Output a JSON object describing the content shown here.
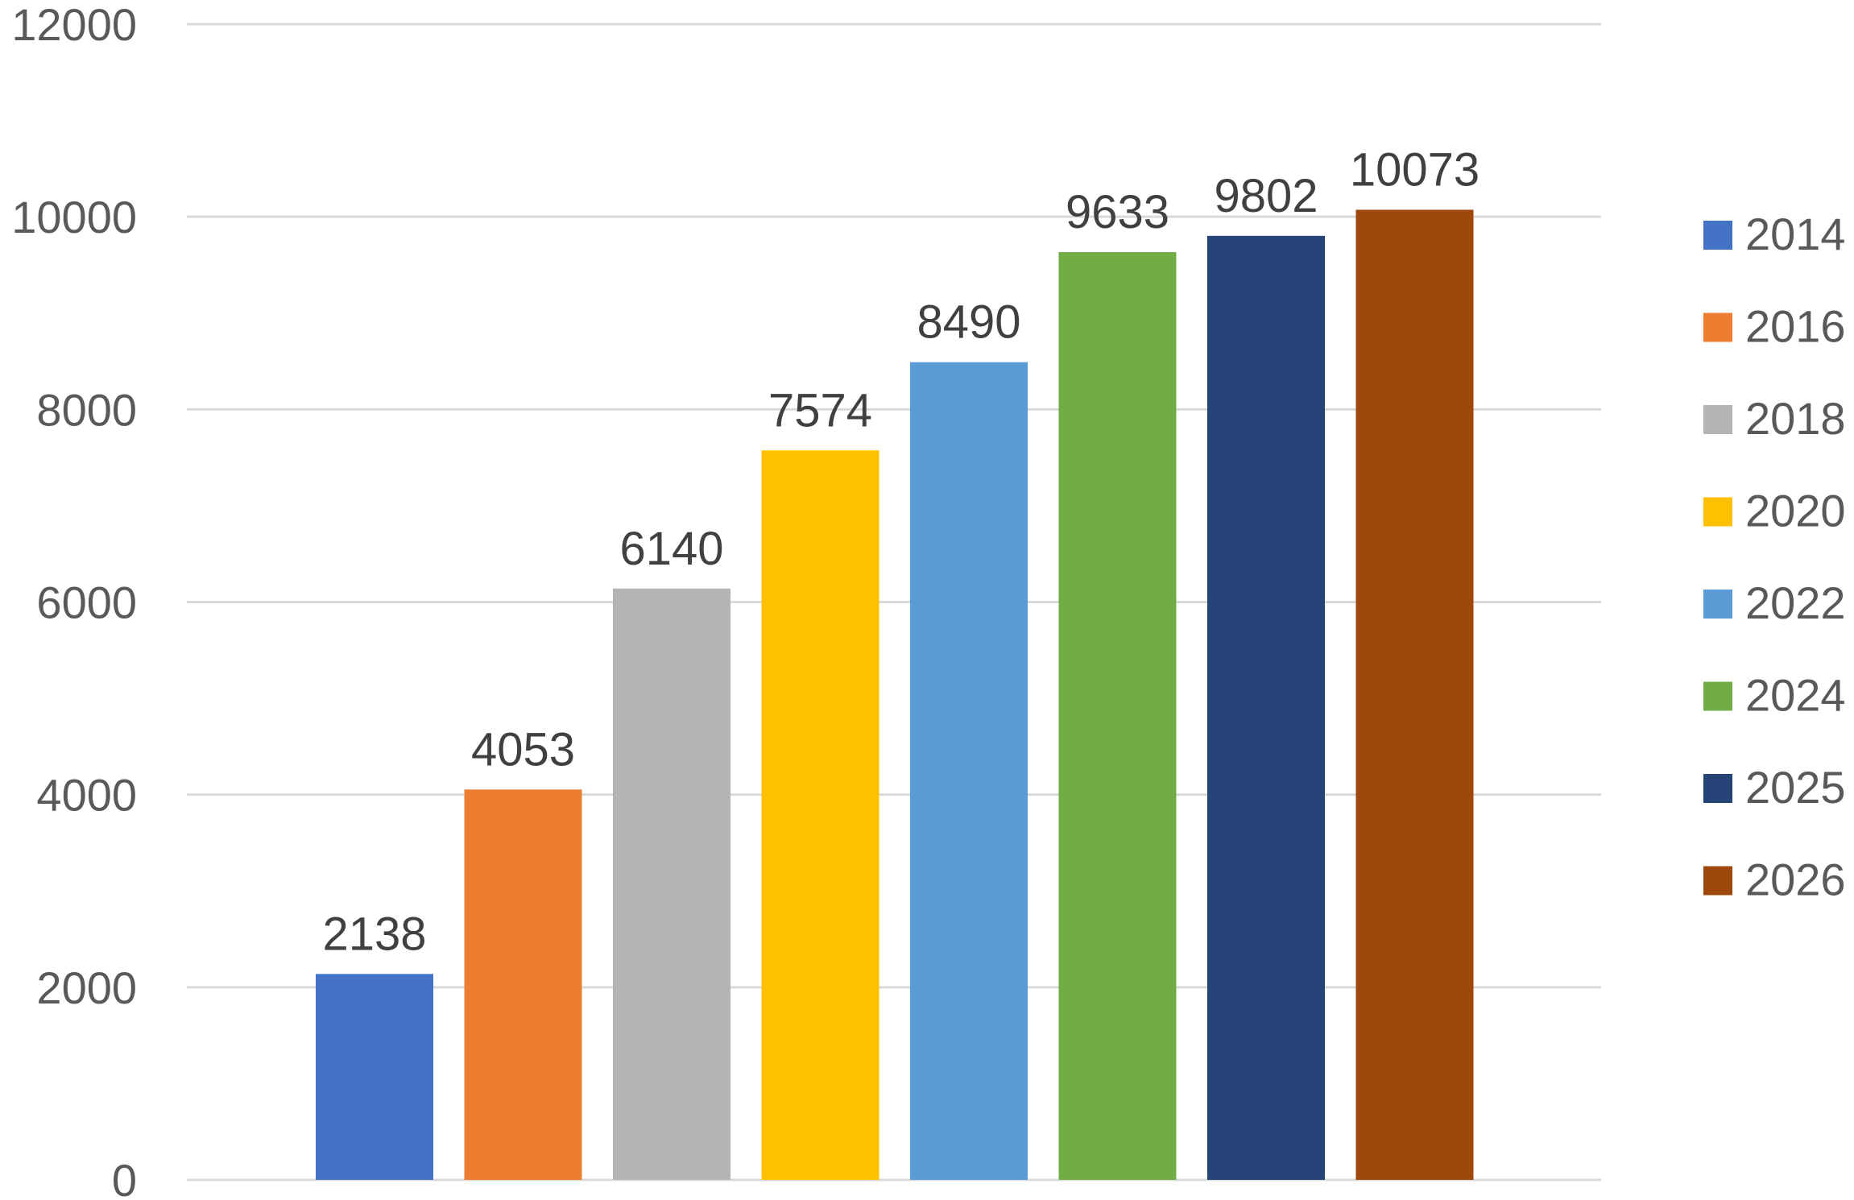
{
  "chart_data": {
    "type": "bar",
    "categories": [
      "2014",
      "2016",
      "2018",
      "2020",
      "2022",
      "2024",
      "2025",
      "2026"
    ],
    "series": [
      {
        "values": [
          2138,
          4053,
          6140,
          7574,
          8490,
          9633,
          9802,
          10073
        ],
        "colors": [
          "#4472c4",
          "#ed7d31",
          "#b4b4b4",
          "#ffc000",
          "#5b9bd5",
          "#70ad47",
          "#264478",
          "#9e480e"
        ]
      }
    ],
    "data_labels": [
      "2138",
      "4053",
      "6140",
      "7574",
      "8490",
      "9633",
      "9802",
      "10073"
    ],
    "y_ticks": [
      "0",
      "2000",
      "4000",
      "6000",
      "8000",
      "10000",
      "12000"
    ],
    "y_tick_values": [
      0,
      2000,
      4000,
      6000,
      8000,
      10000,
      12000
    ],
    "ylim": [
      0,
      12000
    ],
    "grid": true,
    "legend": {
      "position": "right",
      "entries": [
        "2014",
        "2016",
        "2018",
        "2020",
        "2022",
        "2024",
        "2025",
        "2026"
      ]
    },
    "title": "",
    "xlabel": "",
    "ylabel": ""
  }
}
